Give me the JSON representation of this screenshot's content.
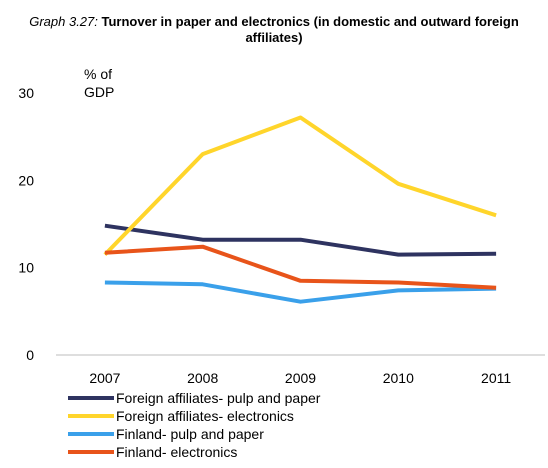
{
  "chart_data": {
    "type": "line",
    "title_lead": "Graph 3.27:",
    "title": "Turnover in paper and electronics (in domestic and outward foreign affiliates)",
    "ylabel": "% of GDP",
    "ylabel_lines": [
      "% of",
      "GDP"
    ],
    "xlabel": "",
    "x": [
      "2007",
      "2008",
      "2009",
      "2010",
      "2011"
    ],
    "ylim": [
      0,
      30
    ],
    "yticks": [
      "0",
      "10",
      "20",
      "30"
    ],
    "grid": false,
    "legend_position": "bottom-left",
    "series": [
      {
        "name": "Foreign affiliates- pulp and paper",
        "color": "#2e3360",
        "values": [
          14.8,
          13.2,
          13.2,
          11.5,
          11.6
        ]
      },
      {
        "name": "Foreign affiliates- electronics",
        "color": "#ffd52b",
        "values": [
          11.5,
          23.0,
          27.2,
          19.6,
          16.0
        ]
      },
      {
        "name": "Finland- pulp and paper",
        "color": "#3aa0ea",
        "values": [
          8.3,
          8.1,
          6.1,
          7.4,
          7.6
        ]
      },
      {
        "name": "Finland- electronics",
        "color": "#e8541a",
        "values": [
          11.7,
          12.4,
          8.5,
          8.3,
          7.7
        ]
      }
    ]
  }
}
